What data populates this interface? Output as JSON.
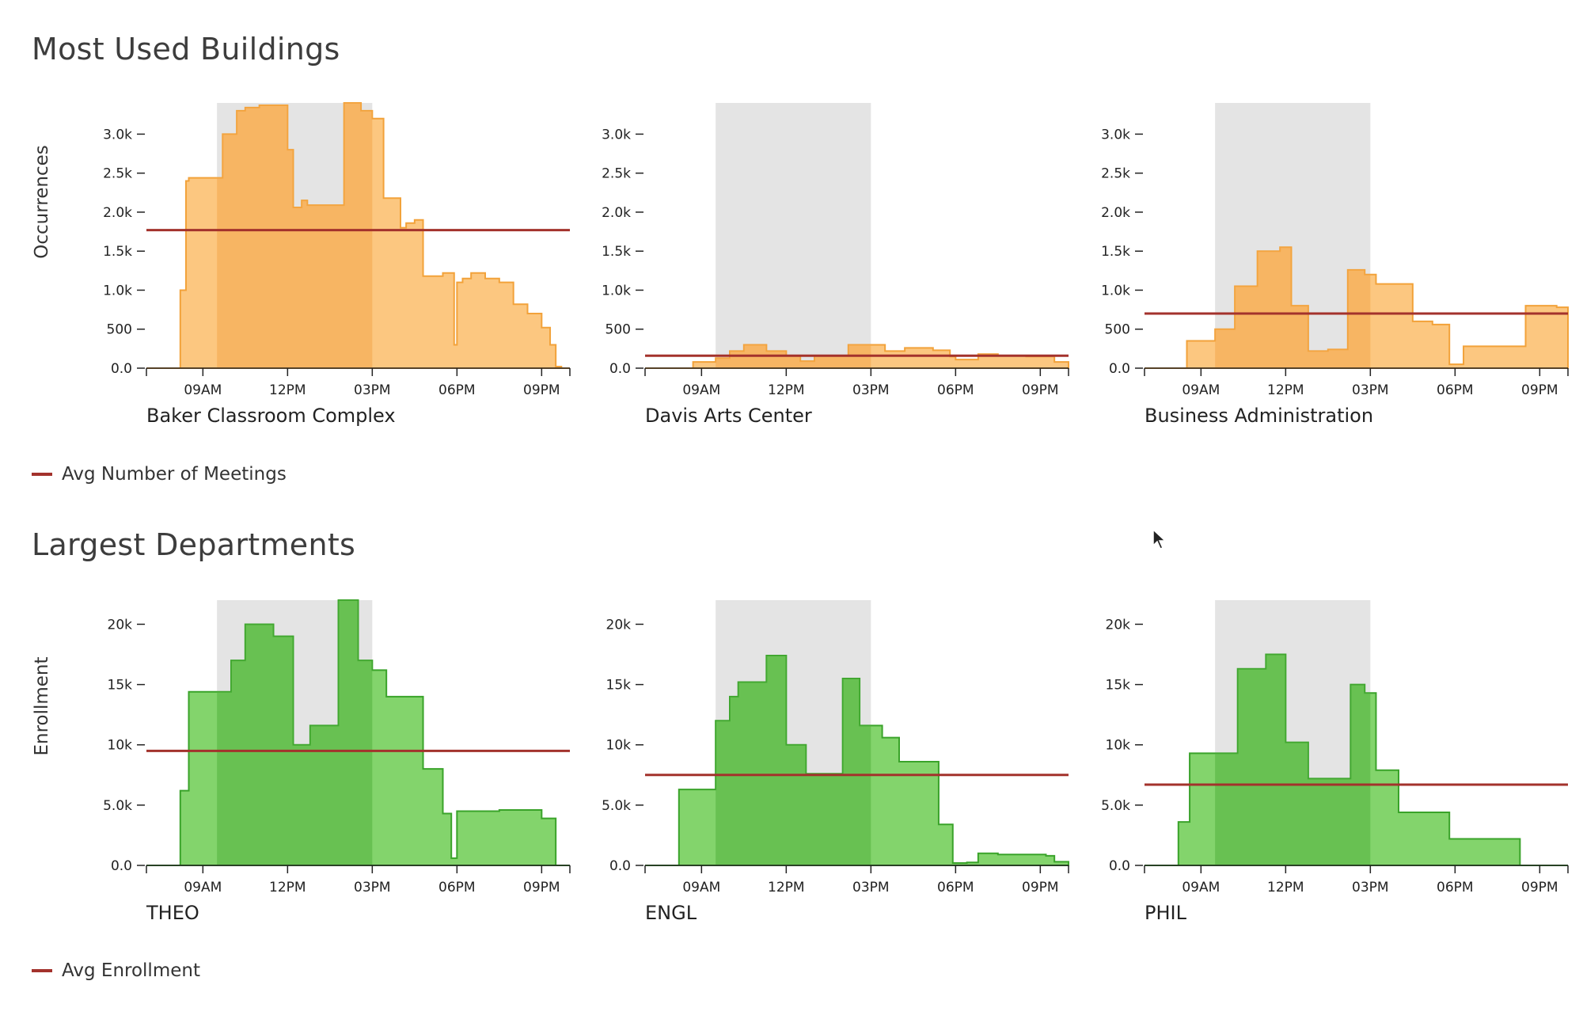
{
  "sections": {
    "buildings_title": "Most Used Buildings",
    "departments_title": "Largest Departments",
    "buildings_legend": "Avg Number of Meetings",
    "departments_legend": "Avg Enrollment",
    "buildings_ylabel": "Occurrences",
    "departments_ylabel": "Enrollment"
  },
  "colors": {
    "avg_line": "#a3322c",
    "orange_fill": "#fcbd6a",
    "orange_stroke": "#f2a23a",
    "green_fill": "#6dcc52",
    "green_stroke": "#3aa32a",
    "core_hours": "#e4e4e4"
  },
  "chart_data": [
    {
      "type": "area",
      "title": "Baker Classroom Complex",
      "group": "buildings",
      "xlabel": "",
      "ylabel": "Occurrences",
      "x_ticks": [
        "09AM",
        "12PM",
        "03PM",
        "06PM",
        "09PM"
      ],
      "y_ticks": [
        "0.0",
        "500",
        "1.0k",
        "1.5k",
        "2.0k",
        "2.5k",
        "3.0k"
      ],
      "xlim": [
        7,
        22
      ],
      "ylim": [
        0,
        3400
      ],
      "core_hours": [
        9.5,
        15
      ],
      "average": 1770,
      "x": [
        7,
        8,
        8.2,
        8.4,
        8.5,
        9.5,
        9.7,
        10,
        10.2,
        10.5,
        11,
        11.5,
        12,
        12.2,
        12.5,
        12.7,
        13.5,
        14,
        14.6,
        15,
        15.4,
        16,
        16.2,
        16.5,
        16.8,
        17.5,
        17.9,
        18,
        18.2,
        18.5,
        19,
        19.5,
        20,
        20.5,
        21,
        21.3,
        21.5,
        21.7,
        22
      ],
      "y": [
        0,
        0,
        1000,
        2400,
        2440,
        2440,
        3000,
        3000,
        3300,
        3340,
        3370,
        3370,
        2800,
        2060,
        2150,
        2090,
        2090,
        3400,
        3300,
        3200,
        2180,
        1800,
        1860,
        1900,
        1180,
        1220,
        300,
        1100,
        1150,
        1220,
        1150,
        1100,
        820,
        700,
        520,
        300,
        20,
        0,
        0
      ]
    },
    {
      "type": "area",
      "title": "Davis Arts Center",
      "group": "buildings",
      "xlabel": "",
      "ylabel": "",
      "x_ticks": [
        "09AM",
        "12PM",
        "03PM",
        "06PM",
        "09PM"
      ],
      "y_ticks": [
        "0.0",
        "500",
        "1.0k",
        "1.5k",
        "2.0k",
        "2.5k",
        "3.0k"
      ],
      "xlim": [
        7,
        22
      ],
      "ylim": [
        0,
        3400
      ],
      "core_hours": [
        9.5,
        15
      ],
      "average": 160,
      "x": [
        7,
        8,
        8.7,
        9.5,
        10,
        10.5,
        11.3,
        12,
        12.5,
        13,
        14.2,
        15.5,
        16.2,
        17.2,
        17.8,
        18,
        18.8,
        19.5,
        20.5,
        21.5,
        22
      ],
      "y": [
        0,
        0,
        80,
        130,
        220,
        300,
        220,
        160,
        90,
        160,
        300,
        220,
        260,
        230,
        150,
        110,
        180,
        160,
        150,
        80,
        0
      ]
    },
    {
      "type": "area",
      "title": "Business Administration",
      "group": "buildings",
      "xlabel": "",
      "ylabel": "",
      "x_ticks": [
        "09AM",
        "12PM",
        "03PM",
        "06PM",
        "09PM"
      ],
      "y_ticks": [
        "0.0",
        "500",
        "1.0k",
        "1.5k",
        "2.0k",
        "2.5k",
        "3.0k"
      ],
      "xlim": [
        7,
        22
      ],
      "ylim": [
        0,
        3400
      ],
      "core_hours": [
        9.5,
        15
      ],
      "average": 700,
      "x": [
        7,
        8,
        8.5,
        9.5,
        10.2,
        11,
        11.8,
        12.2,
        12.8,
        13.5,
        14.2,
        14.8,
        15.2,
        16.5,
        17.2,
        17.8,
        18.3,
        20.5,
        21.6,
        22
      ],
      "y": [
        0,
        0,
        350,
        500,
        1050,
        1500,
        1550,
        800,
        220,
        240,
        1260,
        1200,
        1080,
        600,
        560,
        50,
        280,
        800,
        780,
        0
      ]
    },
    {
      "type": "area",
      "title": "THEO",
      "group": "departments",
      "xlabel": "",
      "ylabel": "Enrollment",
      "x_ticks": [
        "09AM",
        "12PM",
        "03PM",
        "06PM",
        "09PM"
      ],
      "y_ticks": [
        "0.0",
        "5.0k",
        "10k",
        "15k",
        "20k"
      ],
      "xlim": [
        7,
        22
      ],
      "ylim": [
        0,
        22000
      ],
      "core_hours": [
        9.5,
        15
      ],
      "average": 9500,
      "x": [
        7,
        8,
        8.2,
        8.5,
        9.5,
        10,
        10.5,
        11.5,
        12.2,
        12.8,
        13.8,
        14.5,
        15,
        15.5,
        16.8,
        17.5,
        17.8,
        18,
        19.5,
        21,
        21.5,
        22
      ],
      "y": [
        0,
        0,
        6200,
        14400,
        14400,
        17000,
        20000,
        19000,
        10000,
        11600,
        22000,
        17000,
        16200,
        14000,
        8000,
        4300,
        600,
        4500,
        4600,
        3900,
        0,
        0
      ]
    },
    {
      "type": "area",
      "title": "ENGL",
      "group": "departments",
      "xlabel": "",
      "ylabel": "",
      "x_ticks": [
        "09AM",
        "12PM",
        "03PM",
        "06PM",
        "09PM"
      ],
      "y_ticks": [
        "0.0",
        "5.0k",
        "10k",
        "15k",
        "20k"
      ],
      "xlim": [
        7,
        22
      ],
      "ylim": [
        0,
        22000
      ],
      "core_hours": [
        9.5,
        15
      ],
      "average": 7500,
      "x": [
        7,
        8,
        8.2,
        9.5,
        10,
        10.3,
        11.3,
        12,
        12.7,
        14,
        14.6,
        15.4,
        16,
        17.4,
        17.9,
        18.4,
        18.8,
        19.5,
        21.2,
        21.5,
        22
      ],
      "y": [
        0,
        0,
        6300,
        12000,
        14000,
        15200,
        17400,
        10000,
        7600,
        15500,
        11600,
        10600,
        8600,
        3400,
        200,
        250,
        1000,
        900,
        800,
        300,
        0
      ]
    },
    {
      "type": "area",
      "title": "PHIL",
      "group": "departments",
      "xlabel": "",
      "ylabel": "",
      "x_ticks": [
        "09AM",
        "12PM",
        "03PM",
        "06PM",
        "09PM"
      ],
      "y_ticks": [
        "0.0",
        "5.0k",
        "10k",
        "15k",
        "20k"
      ],
      "xlim": [
        7,
        22
      ],
      "ylim": [
        0,
        22000
      ],
      "core_hours": [
        9.5,
        15
      ],
      "average": 6700,
      "x": [
        7,
        8,
        8.2,
        8.6,
        10,
        10.3,
        11.3,
        12,
        12.8,
        14.3,
        14.8,
        15.2,
        16,
        17.8,
        18.2,
        20.3,
        22
      ],
      "y": [
        0,
        0,
        3600,
        9300,
        9300,
        16300,
        17500,
        10200,
        7200,
        15000,
        14300,
        7900,
        4400,
        2200,
        2200,
        0,
        0
      ]
    }
  ]
}
